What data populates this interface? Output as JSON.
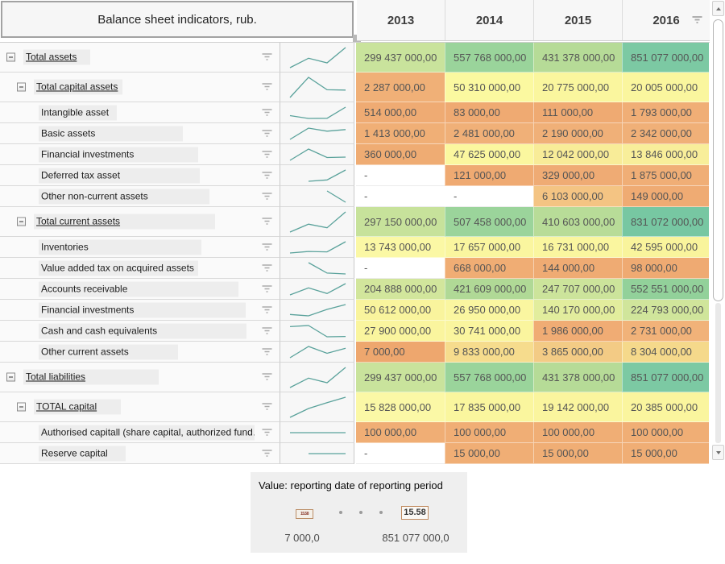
{
  "title": "Balance sheet indicators, rub.",
  "columns": [
    "2013",
    "2014",
    "2015",
    "2016"
  ],
  "sparkline_color": "#5aa29b",
  "icons": {
    "filter": "funnel-lines",
    "expander": "minus-box",
    "scroll_up": "triangle-up",
    "scroll_down": "triangle-down"
  },
  "rows": [
    {
      "label": "Total assets",
      "level": 1,
      "parent": true,
      "label_bg_w": 83,
      "values": [
        "299 437 000,00",
        "557 768 000,00",
        "431 378 000,00",
        "851 077 000,00"
      ],
      "nums": [
        299437000,
        557768000,
        431378000,
        851077000
      ],
      "colors": [
        "#c9e39c",
        "#9ad49b",
        "#b6db97",
        "#7cc9a3"
      ]
    },
    {
      "label": "Total capital assets",
      "level": 2,
      "parent": true,
      "label_bg_w": 110,
      "values": [
        "2 287 000,00",
        "50 310 000,00",
        "20 775 000,00",
        "20 005 000,00"
      ],
      "nums": [
        2287000,
        50310000,
        20775000,
        20005000
      ],
      "colors": [
        "#f0b077",
        "#fbf9a0",
        "#faf69e",
        "#faf69e"
      ]
    },
    {
      "label": "Intangible asset",
      "level": 3,
      "parent": false,
      "label_bg_w": 97,
      "values": [
        "514 000,00",
        "83 000,00",
        "111 000,00",
        "1 793 000,00"
      ],
      "nums": [
        514000,
        83000,
        111000,
        1793000
      ],
      "colors": [
        "#efab73",
        "#efaa72",
        "#efaa72",
        "#f0ae76"
      ]
    },
    {
      "label": "Basic assets",
      "level": 3,
      "parent": false,
      "label_bg_w": 179,
      "values": [
        "1 413 000,00",
        "2 481 000,00",
        "2 190 000,00",
        "2 342 000,00"
      ],
      "nums": [
        1413000,
        2481000,
        2190000,
        2342000
      ],
      "colors": [
        "#f0af76",
        "#f0b078",
        "#f0b078",
        "#f0b078"
      ]
    },
    {
      "label": "Financial investments",
      "level": 3,
      "parent": false,
      "label_bg_w": 198,
      "values": [
        "360 000,00",
        "47 625 000,00",
        "12 042 000,00",
        "13 846 000,00"
      ],
      "nums": [
        360000,
        47625000,
        12042000,
        13846000
      ],
      "colors": [
        "#efac73",
        "#fbf79f",
        "#f8ec98",
        "#f8ee9a"
      ]
    },
    {
      "label": "Deferred tax asset",
      "level": 3,
      "parent": false,
      "label_bg_w": 200,
      "values": [
        "-",
        "121 000,00",
        "329 000,00",
        "1 875 000,00"
      ],
      "nums": [
        null,
        121000,
        329000,
        1875000
      ],
      "colors": [
        null,
        "#efaa72",
        "#efab74",
        "#f0ae76"
      ]
    },
    {
      "label": "Other non-current assets",
      "level": 3,
      "parent": false,
      "label_bg_w": 212,
      "values": [
        "-",
        "-",
        "6 103 000,00",
        "149 000,00"
      ],
      "nums": [
        null,
        null,
        6103000,
        149000
      ],
      "colors": [
        null,
        null,
        "#f4c483",
        "#efab73"
      ]
    },
    {
      "label": "Total current assets",
      "level": 2,
      "parent": true,
      "label_bg_w": 225,
      "values": [
        "297 150 000,00",
        "507 458 000,00",
        "410 603 000,00",
        "831 072 000,00"
      ],
      "nums": [
        297150000,
        507458000,
        410603000,
        831072000
      ],
      "colors": [
        "#c7e29b",
        "#9bd49b",
        "#b8dc98",
        "#77c7a2"
      ]
    },
    {
      "label": "Inventories",
      "level": 3,
      "parent": false,
      "label_bg_w": 202,
      "values": [
        "13 743 000,00",
        "17 657 000,00",
        "16 731 000,00",
        "42 595 000,00"
      ],
      "nums": [
        13743000,
        17657000,
        16731000,
        42595000
      ],
      "colors": [
        "#fbf8a5",
        "#faf69f",
        "#faf69f",
        "#f9f49c"
      ]
    },
    {
      "label": "Value added tax on acquired assets",
      "level": 3,
      "parent": false,
      "label_bg_w": 198,
      "values": [
        "-",
        "668 000,00",
        "144 000,00",
        "98 000,00"
      ],
      "nums": [
        null,
        668000,
        144000,
        98000
      ],
      "colors": [
        null,
        "#f0ad74",
        "#efab73",
        "#efaa72"
      ]
    },
    {
      "label": "Accounts receivable",
      "level": 3,
      "parent": false,
      "label_bg_w": 248,
      "values": [
        "204 888 000,00",
        "421 609 000,00",
        "247 707 000,00",
        "552 551 000,00"
      ],
      "nums": [
        204888000,
        421609000,
        247707000,
        552551000
      ],
      "colors": [
        "#d2e69c",
        "#b0d996",
        "#cce49b",
        "#92d19a"
      ]
    },
    {
      "label": "Financial investments",
      "level": 3,
      "parent": false,
      "label_bg_w": 257,
      "values": [
        "50 612 000,00",
        "26 950 000,00",
        "140 170 000,00",
        "224 793 000,00"
      ],
      "nums": [
        50612000,
        26950000,
        140170000,
        224793000
      ],
      "colors": [
        "#f9f49d",
        "#faf6a0",
        "#e2ed9d",
        "#d0e59b"
      ]
    },
    {
      "label": "Cash and cash equivalents",
      "level": 3,
      "parent": false,
      "label_bg_w": 258,
      "values": [
        "27 900 000,00",
        "30 741 000,00",
        "1 986 000,00",
        "2 731 000,00"
      ],
      "nums": [
        27900000,
        30741000,
        1986000,
        2731000
      ],
      "colors": [
        "#faf59e",
        "#faf59e",
        "#f0ac74",
        "#f1b279"
      ]
    },
    {
      "label": "Other current assets",
      "level": 3,
      "parent": false,
      "label_bg_w": 173,
      "values": [
        "7 000,00",
        "9 833 000,00",
        "3 865 000,00",
        "8 304 000,00"
      ],
      "nums": [
        7000,
        9833000,
        3865000,
        8304000
      ],
      "colors": [
        "#eea76e",
        "#f6dc8d",
        "#f3cb85",
        "#f5d98b"
      ]
    },
    {
      "label": "Total liabilities",
      "level": 1,
      "parent": true,
      "label_bg_w": 168,
      "values": [
        "299 437 000,00",
        "557 768 000,00",
        "431 378 000,00",
        "851 077 000,00"
      ],
      "nums": [
        299437000,
        557768000,
        431378000,
        851077000
      ],
      "colors": [
        "#c9e39c",
        "#9ad49b",
        "#b6db97",
        "#7cc9a3"
      ]
    },
    {
      "label": "TOTAL capital",
      "level": 2,
      "parent": true,
      "label_bg_w": 108,
      "values": [
        "15 828 000,00",
        "17 835 000,00",
        "19 142 000,00",
        "20 385 000,00"
      ],
      "nums": [
        15828000,
        17835000,
        19142000,
        20385000
      ],
      "colors": [
        "#fbf8a6",
        "#faf69e",
        "#faf59e",
        "#faf59e"
      ]
    },
    {
      "label": "Authorised capitall (share capital, authorized fund…",
      "level": 3,
      "parent": false,
      "label_bg_w": 268,
      "values": [
        "100 000,00",
        "100 000,00",
        "100 000,00",
        "100 000,00"
      ],
      "nums": [
        100000,
        100000,
        100000,
        100000
      ],
      "colors": [
        "#f0ae75",
        "#f0ae75",
        "#f0ae75",
        "#f0ae75"
      ]
    },
    {
      "label": "Reserve capital",
      "level": 3,
      "parent": false,
      "label_bg_w": 108,
      "values": [
        "-",
        "15 000,00",
        "15 000,00",
        "15 000,00"
      ],
      "nums": [
        null,
        15000,
        15000,
        15000
      ],
      "colors": [
        null,
        "#f0ae75",
        "#f0ae75",
        "#f0ae75"
      ]
    }
  ],
  "legend": {
    "title": "Value: reporting date of reporting period",
    "left_handle_value": "15.58",
    "right_handle_value": "15.58",
    "min_label": "7 000,0",
    "max_label": "851 077 000,0"
  }
}
